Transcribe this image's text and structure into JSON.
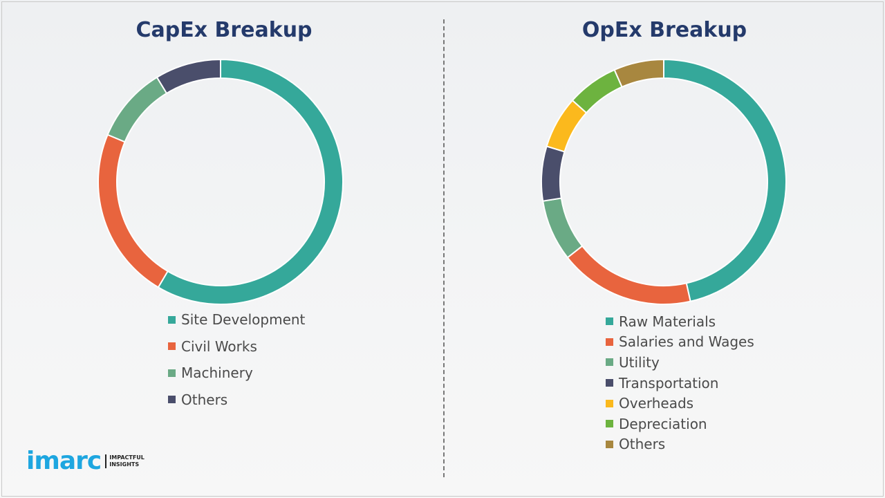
{
  "chart_data": [
    {
      "type": "pie",
      "donut": true,
      "title": "CapEx Breakup",
      "legend_position": "bottom",
      "categories": [
        "Site Development",
        "Civil Works",
        "Machinery",
        "Others"
      ],
      "values": [
        58.5,
        22.8,
        10.0,
        8.7
      ],
      "colors": [
        "#35a89a",
        "#e8643e",
        "#6aaa85",
        "#4a4e6b"
      ]
    },
    {
      "type": "pie",
      "donut": true,
      "title": "OpEx Breakup",
      "legend_position": "bottom",
      "categories": [
        "Raw Materials",
        "Salaries and Wages",
        "Utility",
        "Transportation",
        "Overheads",
        "Depreciation",
        "Others"
      ],
      "values": [
        46.5,
        17.9,
        8.1,
        7.2,
        6.9,
        6.8,
        6.6
      ],
      "colors": [
        "#35a89a",
        "#e8643e",
        "#6aaa85",
        "#4a4e6b",
        "#fbb91d",
        "#6db33f",
        "#a8873f"
      ]
    }
  ],
  "logo": {
    "word": "imarc",
    "tagline": [
      "IMPACTFUL",
      "INSIGHTS"
    ],
    "color": "#1ea6e0"
  }
}
